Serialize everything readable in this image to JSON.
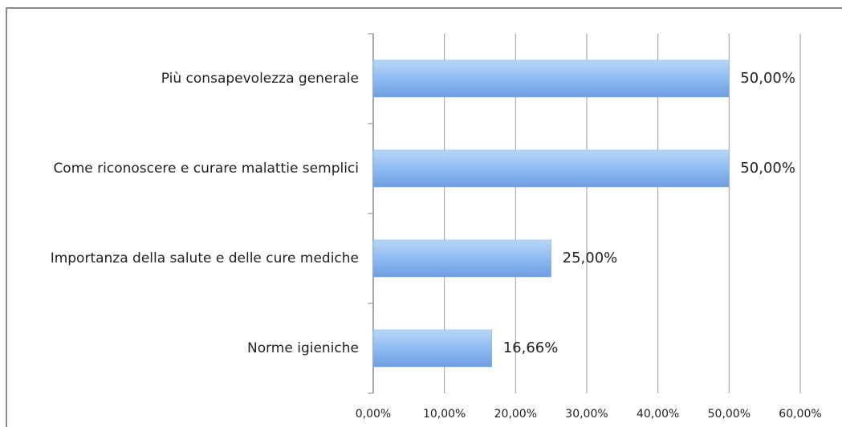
{
  "chart_data": {
    "type": "hbar",
    "categories": [
      "Più consapevolezza generale",
      "Come riconoscere e curare malattie semplici",
      "Importanza della salute e delle cure mediche",
      "Norme igieniche"
    ],
    "values": [
      50,
      50,
      25,
      16.66
    ],
    "value_labels": [
      "50,00%",
      "50,00%",
      "25,00%",
      "16,66%"
    ],
    "color": "#7fb0ec",
    "xlim": [
      0,
      60
    ],
    "xticks": [
      {
        "value": 0,
        "label": "0,00%"
      },
      {
        "value": 10,
        "label": "10,00%"
      },
      {
        "value": 20,
        "label": "20,00%"
      },
      {
        "value": 30,
        "label": "30,00%"
      },
      {
        "value": 40,
        "label": "40,00%"
      },
      {
        "value": 50,
        "label": "50,00%"
      },
      {
        "value": 60,
        "label": "60,00%"
      }
    ],
    "grid": true
  }
}
